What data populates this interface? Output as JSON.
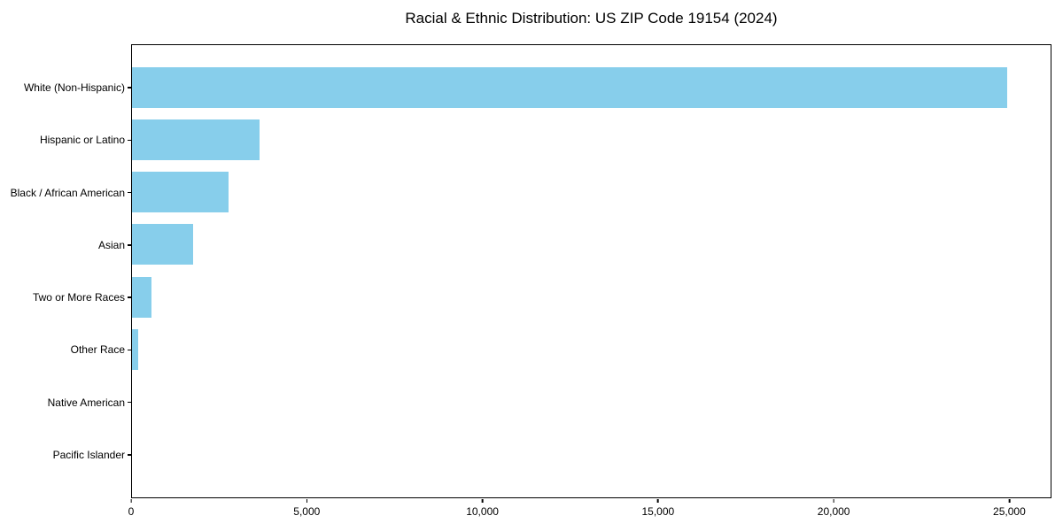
{
  "title": "Racial & Ethnic Distribution: US ZIP Code 19154 (2024)",
  "colors": {
    "bar": "#87CEEB",
    "axis": "#000000",
    "background": "#FFFFFF"
  },
  "chart_data": {
    "type": "bar",
    "orientation": "horizontal",
    "title": "Racial & Ethnic Distribution: US ZIP Code 19154 (2024)",
    "categories": [
      "White (Non-Hispanic)",
      "Hispanic or Latino",
      "Black / African American",
      "Asian",
      "Two or More Races",
      "Other Race",
      "Native American",
      "Pacific Islander"
    ],
    "values": [
      24950,
      3640,
      2750,
      1740,
      560,
      175,
      0,
      0
    ],
    "xlabel": "",
    "ylabel": "",
    "xlim": [
      0,
      26200
    ],
    "xticks": [
      0,
      5000,
      10000,
      15000,
      20000,
      25000
    ],
    "xtick_labels": [
      "0",
      "5,000",
      "10,000",
      "15,000",
      "20,000",
      "25,000"
    ],
    "bar_color": "#87CEEB",
    "grid": false,
    "legend": null
  }
}
